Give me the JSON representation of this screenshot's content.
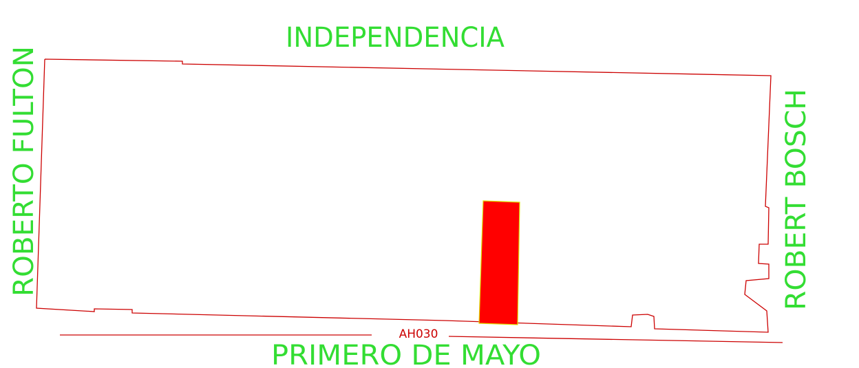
{
  "streets": {
    "north": "INDEPENDENCIA",
    "south": "PRIMERO DE MAYO",
    "west": "ROBERTO FULTON",
    "east": "ROBERT BOSCH"
  },
  "block_code": "AH030",
  "colors": {
    "street_label": "#33dd33",
    "boundary": "#cc0000",
    "highlight_fill": "#ff0000",
    "highlight_edge": "#dddd00",
    "code_label": "#cc0000"
  }
}
